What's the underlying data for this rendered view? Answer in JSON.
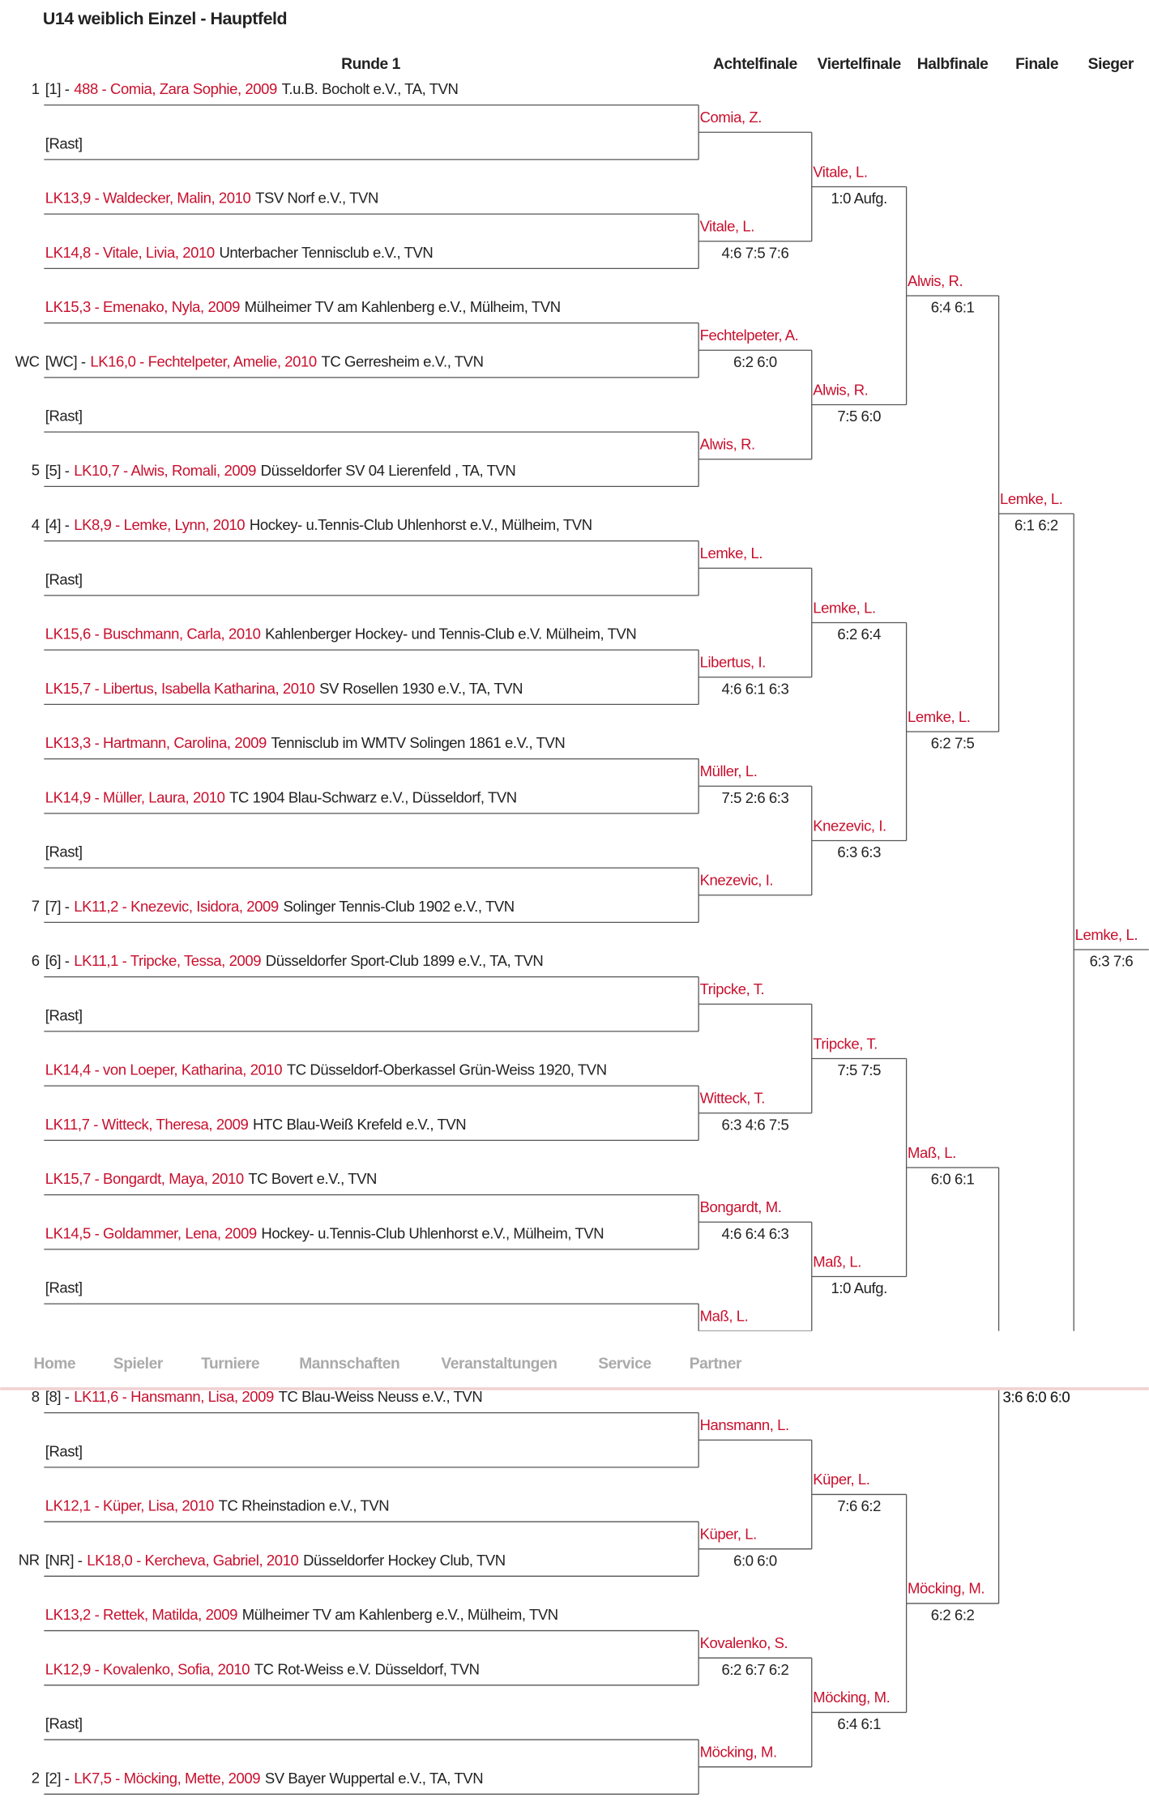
{
  "title": "U14 weiblich Einzel - Hauptfeld",
  "headers": [
    "Runde 1",
    "Achtelfinale",
    "Viertelfinale",
    "Halbfinale",
    "Finale",
    "Sieger"
  ],
  "round1": [
    {
      "marker": "1",
      "tag": "[1] -",
      "player": "488 - Comia, Zara Sophie, 2009",
      "club": "T.u.B. Bocholt e.V., TA, TVN"
    },
    {
      "tag": "[Rast]"
    },
    {
      "player": "LK13,9 - Waldecker, Malin, 2010",
      "club": "TSV Norf e.V., TVN"
    },
    {
      "player": "LK14,8 - Vitale, Livia, 2010",
      "club": "Unterbacher Tennisclub e.V., TVN"
    },
    {
      "player": "LK15,3 - Emenako, Nyla, 2009",
      "club": "Mülheimer TV am Kahlenberg e.V., Mülheim, TVN"
    },
    {
      "marker": "WC",
      "tag": "[WC] -",
      "player": "LK16,0 - Fechtelpeter, Amelie, 2010",
      "club": "TC Gerresheim e.V., TVN"
    },
    {
      "tag": "[Rast]"
    },
    {
      "marker": "5",
      "tag": "[5] -",
      "player": "LK10,7 - Alwis, Romali, 2009",
      "club": "Düsseldorfer SV 04 Lierenfeld , TA, TVN"
    },
    {
      "marker": "4",
      "tag": "[4] -",
      "player": "LK8,9 - Lemke, Lynn, 2010",
      "club": "Hockey- u.Tennis-Club Uhlenhorst e.V., Mülheim, TVN"
    },
    {
      "tag": "[Rast]"
    },
    {
      "player": "LK15,6 - Buschmann, Carla, 2010",
      "club": "Kahlenberger Hockey- und Tennis-Club e.V. Mülheim, TVN"
    },
    {
      "player": "LK15,7 - Libertus, Isabella Katharina, 2010",
      "club": "SV Rosellen 1930 e.V., TA, TVN"
    },
    {
      "player": "LK13,3 - Hartmann, Carolina, 2009",
      "club": "Tennisclub im WMTV Solingen 1861 e.V., TVN"
    },
    {
      "player": "LK14,9 - Müller, Laura, 2010",
      "club": "TC 1904 Blau-Schwarz e.V., Düsseldorf, TVN"
    },
    {
      "tag": "[Rast]"
    },
    {
      "marker": "7",
      "tag": "[7] -",
      "player": "LK11,2 - Knezevic, Isidora, 2009",
      "club": "Solinger Tennis-Club 1902 e.V., TVN"
    },
    {
      "marker": "6",
      "tag": "[6] -",
      "player": "LK11,1 - Tripcke, Tessa, 2009",
      "club": "Düsseldorfer Sport-Club 1899 e.V., TA, TVN"
    },
    {
      "tag": "[Rast]"
    },
    {
      "player": "LK14,4 - von Loeper, Katharina, 2010",
      "club": "TC Düsseldorf-Oberkassel Grün-Weiss 1920, TVN"
    },
    {
      "player": "LK11,7 - Witteck, Theresa, 2009",
      "club": "HTC Blau-Weiß Krefeld e.V., TVN"
    },
    {
      "player": "LK15,7 - Bongardt, Maya, 2010",
      "club": "TC Bovert e.V., TVN"
    },
    {
      "player": "LK14,5 - Goldammer, Lena, 2009",
      "club": "Hockey- u.Tennis-Club Uhlenhorst e.V., Mülheim, TVN"
    },
    {
      "tag": "[Rast]"
    },
    null,
    {
      "marker": "8",
      "tag": "[8] -",
      "player": "LK11,6 - Hansmann, Lisa, 2009",
      "club": "TC Blau-Weiss Neuss e.V., TVN"
    },
    {
      "tag": "[Rast]"
    },
    {
      "player": "LK12,1 - Küper, Lisa, 2010",
      "club": "TC Rheinstadion e.V., TVN"
    },
    {
      "marker": "NR",
      "tag": "[NR] -",
      "player": "LK18,0 - Kercheva, Gabriel, 2010",
      "club": "Düsseldorfer Hockey Club, TVN"
    },
    {
      "player": "LK13,2 - Rettek, Matilda, 2009",
      "club": "Mülheimer TV am Kahlenberg e.V., Mülheim, TVN"
    },
    {
      "player": "LK12,9 - Kovalenko, Sofia, 2010",
      "club": "TC Rot-Weiss e.V. Düsseldorf, TVN"
    },
    {
      "tag": "[Rast]"
    },
    {
      "marker": "2",
      "tag": "[2] -",
      "player": "LK7,5 - Möcking, Mette, 2009",
      "club": "SV Bayer Wuppertal e.V., TA, TVN"
    }
  ],
  "achtelfinale": [
    {
      "name": "Comia, Z."
    },
    {
      "name": "Vitale, L.",
      "score": "4:6 7:5 7:6"
    },
    {
      "name": "Fechtelpeter, A.",
      "score": "6:2 6:0"
    },
    {
      "name": "Alwis, R."
    },
    {
      "name": "Lemke, L."
    },
    {
      "name": "Libertus, I.",
      "score": "4:6 6:1 6:3"
    },
    {
      "name": "Müller, L.",
      "score": "7:5 2:6 6:3"
    },
    {
      "name": "Knezevic, I."
    },
    {
      "name": "Tripcke, T."
    },
    {
      "name": "Witteck, T.",
      "score": "6:3 4:6 7:5"
    },
    {
      "name": "Bongardt, M.",
      "score": "4:6 6:4 6:3"
    },
    {
      "name": "Maß, L."
    },
    {
      "name": "Hansmann, L."
    },
    {
      "name": "Küper, L.",
      "score": "6:0 6:0"
    },
    {
      "name": "Kovalenko, S.",
      "score": "6:2 6:7 6:2"
    },
    {
      "name": "Möcking, M."
    }
  ],
  "viertelfinale": [
    {
      "name": "Vitale, L.",
      "score": "1:0 Aufg."
    },
    {
      "name": "Alwis, R.",
      "score": "7:5 6:0"
    },
    {
      "name": "Lemke, L.",
      "score": "6:2 6:4"
    },
    {
      "name": "Knezevic, I.",
      "score": "6:3 6:3"
    },
    {
      "name": "Tripcke, T.",
      "score": "7:5 7:5"
    },
    {
      "name": "Maß, L.",
      "score": "1:0 Aufg."
    },
    {
      "name": "Küper, L.",
      "score": "7:6 6:2"
    },
    {
      "name": "Möcking, M.",
      "score": "6:4 6:1"
    }
  ],
  "halbfinale": [
    {
      "name": "Alwis, R.",
      "score": "6:4 6:1"
    },
    {
      "name": "Lemke, L.",
      "score": "6:2 7:5"
    },
    {
      "name": "Maß, L.",
      "score": "6:0 6:1"
    },
    {
      "name": "Möcking, M.",
      "score": "6:2 6:2"
    }
  ],
  "finale": [
    {
      "name": "Lemke, L.",
      "score": "6:1 6:2"
    },
    {
      "score": "3:6 6:0 6:0"
    }
  ],
  "sieger": [
    {
      "name": "Lemke, L.",
      "score": "6:3 7:6"
    }
  ],
  "nav": [
    "Home",
    "Spieler",
    "Turniere",
    "Mannschaften",
    "Veranstaltungen",
    "Service",
    "Partner"
  ]
}
